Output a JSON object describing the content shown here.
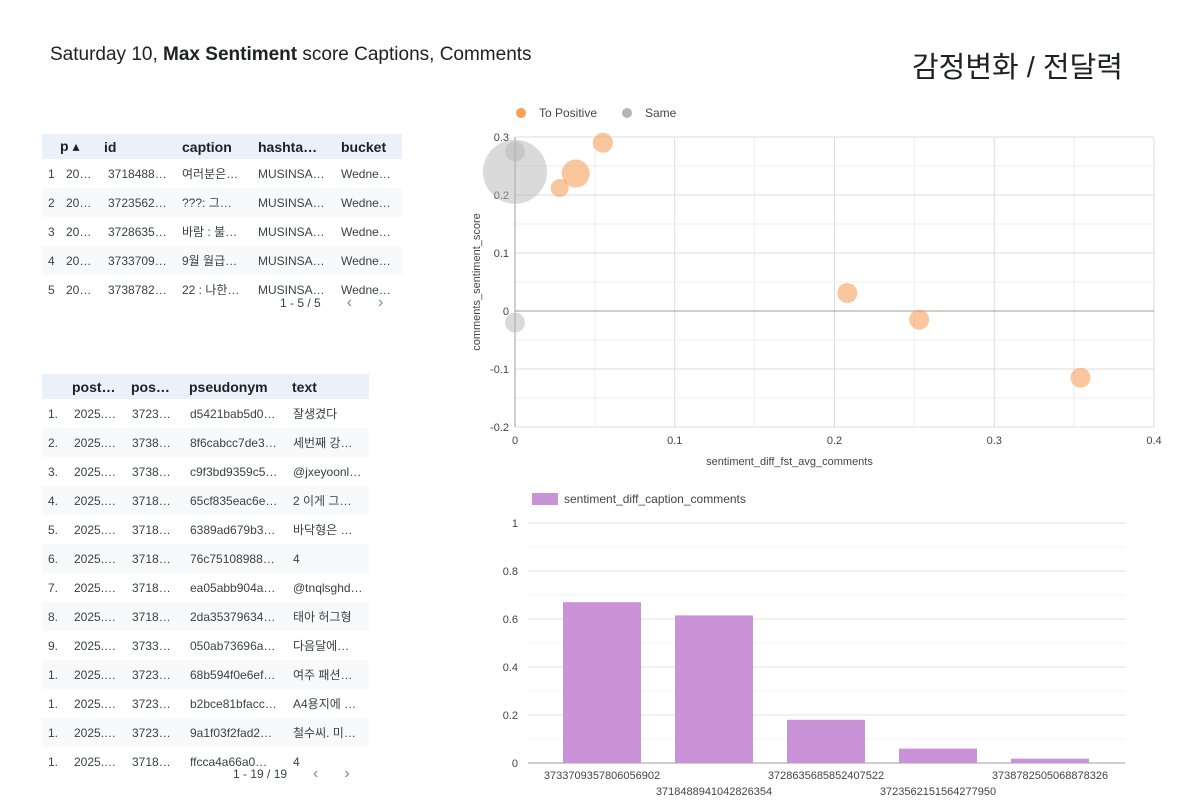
{
  "header": {
    "title_prefix": "Saturday 10, ",
    "title_bold": "Max Sentiment",
    "title_suffix": " score Captions, Comments",
    "korean_title": "감정변화 / 전달력"
  },
  "table1": {
    "columns": [
      "p ▴",
      "id",
      "caption",
      "hashta…",
      "bucket"
    ],
    "rows": [
      [
        "1",
        "20…",
        "3718488…",
        "여러분은…",
        "MUSINSA…",
        "Wedne…"
      ],
      [
        "2",
        "20…",
        "3723562…",
        "???: 그…",
        "MUSINSA…",
        "Wedne…"
      ],
      [
        "3",
        "20…",
        "3728635…",
        "바람 : 불…",
        "MUSINSA…",
        "Wedne…"
      ],
      [
        "4",
        "20…",
        "3733709…",
        "9월 월급…",
        "MUSINSA…",
        "Wedne…"
      ],
      [
        "5",
        "20…",
        "3738782…",
        "22 : 나한…",
        "MUSINSA…",
        "Wedne…"
      ]
    ],
    "pagination": "1 - 5 / 5"
  },
  "table2": {
    "columns": [
      "post…",
      "pos…",
      "pseudonym",
      "text"
    ],
    "rows": [
      [
        "1.",
        "2025.…",
        "3723…",
        "d5421bab5d0…",
        "잘생겼다"
      ],
      [
        "2.",
        "2025.…",
        "3738…",
        "8f6cabcc7de3…",
        "세번째 강…"
      ],
      [
        "3.",
        "2025.…",
        "3738…",
        "c9f3bd9359c5…",
        "@jxeyoonl…"
      ],
      [
        "4.",
        "2025.…",
        "3718…",
        "65cf835eac6e…",
        "2 이게 그…"
      ],
      [
        "5.",
        "2025.…",
        "3718…",
        "6389ad679b3…",
        "바닥형은 …"
      ],
      [
        "6.",
        "2025.…",
        "3718…",
        "76c75108988…",
        "4"
      ],
      [
        "7.",
        "2025.…",
        "3718…",
        "ea05abb904a…",
        "@tnqlsghd…"
      ],
      [
        "8.",
        "2025.…",
        "3718…",
        "2da35379634…",
        "태아 허그형"
      ],
      [
        "9.",
        "2025.…",
        "3733…",
        "050ab73696a…",
        "다음달에…"
      ],
      [
        "1.",
        "2025.…",
        "3723…",
        "68b594f0e6ef…",
        "여주 패션…"
      ],
      [
        "1.",
        "2025.…",
        "3723…",
        "b2bce81bfacc…",
        "A4용지에 …"
      ],
      [
        "1.",
        "2025.…",
        "3723…",
        "9a1f03f2fad2…",
        "철수씨. 미…"
      ],
      [
        "1.",
        "2025.…",
        "3718…",
        "ffcca4a66a0…",
        "4"
      ]
    ],
    "pagination": "1 - 19 / 19"
  },
  "chart_data": [
    {
      "type": "scatter",
      "xlabel": "sentiment_diff_fst_avg_comments",
      "ylabel": "comments_sentiment_score",
      "xlim": [
        0,
        0.4
      ],
      "ylim": [
        -0.2,
        0.3
      ],
      "xticks": [
        "0",
        "0.1",
        "0.2",
        "0.3",
        "0.4"
      ],
      "yticks": [
        "0.3",
        "0.2",
        "0.1",
        "0",
        "-0.1",
        "-0.2"
      ],
      "legend_position": "top-left",
      "grid": true,
      "series": [
        {
          "name": "To Positive",
          "color": "#f6a05b",
          "points": [
            {
              "x": 0.055,
              "y": 0.29,
              "size": 10
            },
            {
              "x": 0.038,
              "y": 0.237,
              "size": 14
            },
            {
              "x": 0.028,
              "y": 0.212,
              "size": 9
            },
            {
              "x": 0.208,
              "y": 0.031,
              "size": 10
            },
            {
              "x": 0.253,
              "y": -0.015,
              "size": 10
            },
            {
              "x": 0.354,
              "y": -0.115,
              "size": 10
            }
          ]
        },
        {
          "name": "Same",
          "color": "#b5b5b5",
          "points": [
            {
              "x": 0.0,
              "y": 0.24,
              "size": 32
            },
            {
              "x": 0.0,
              "y": 0.275,
              "size": 10
            },
            {
              "x": 0.0,
              "y": -0.02,
              "size": 10
            }
          ]
        }
      ]
    },
    {
      "type": "bar",
      "legend_position": "top-left",
      "grid": true,
      "ylim": [
        0,
        1
      ],
      "yticks": [
        "0",
        "0.2",
        "0.4",
        "0.6",
        "0.8",
        "1"
      ],
      "series": [
        {
          "name": "sentiment_diff_caption_comments",
          "color": "#ca93d8",
          "values": [
            0.67,
            0.615,
            0.18,
            0.06,
            0.018
          ]
        }
      ],
      "categories": [
        "3733709357806056902",
        "3718488941042826354",
        "3728635685852407522",
        "3723562151564277950",
        "3738782505068878326"
      ]
    }
  ]
}
